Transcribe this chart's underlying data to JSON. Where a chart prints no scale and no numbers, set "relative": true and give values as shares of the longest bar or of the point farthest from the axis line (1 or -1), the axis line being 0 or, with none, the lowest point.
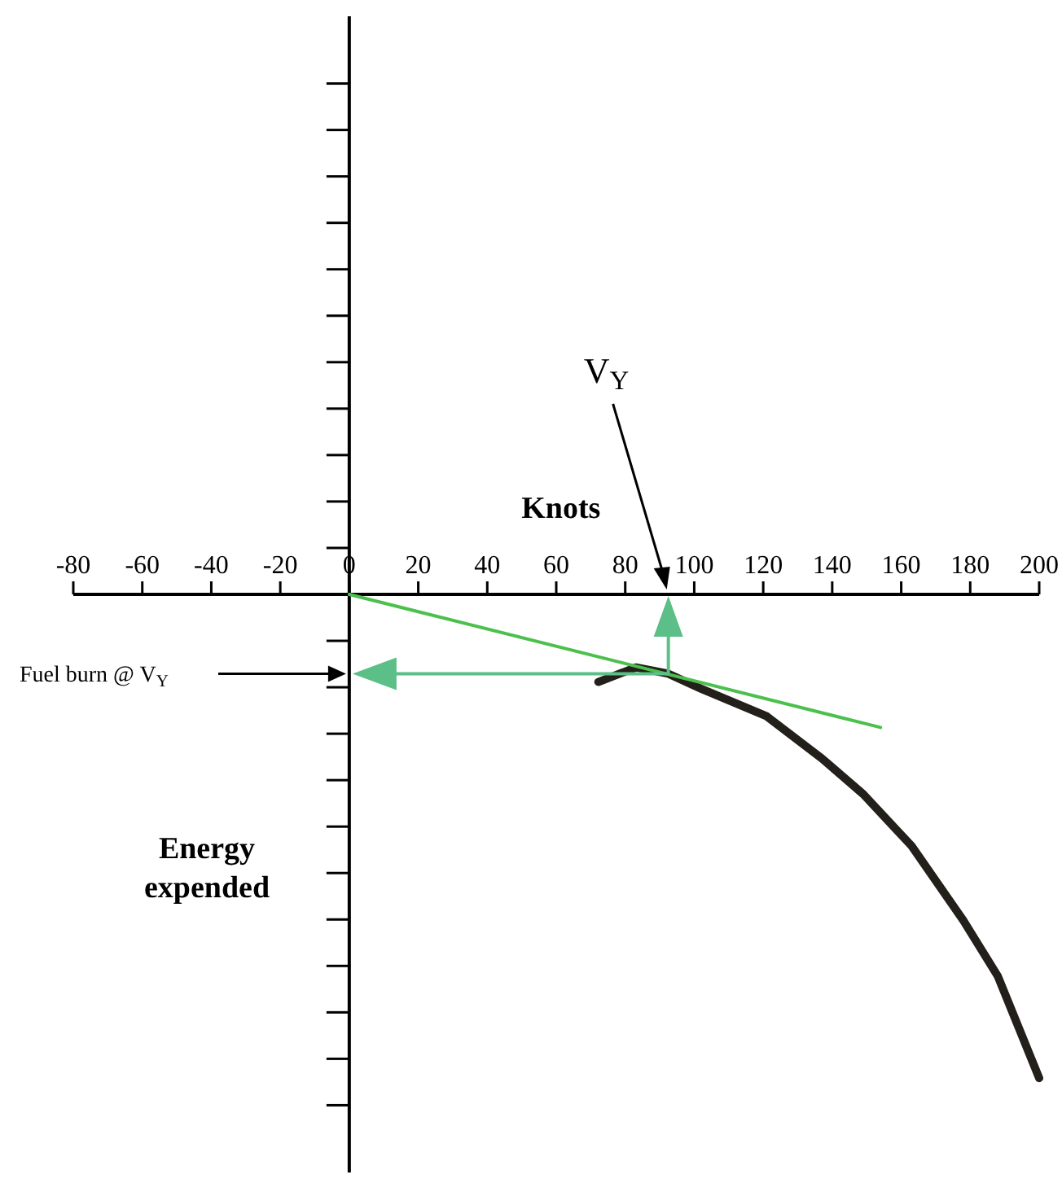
{
  "chart_data": {
    "type": "line",
    "relative": true,
    "xlabel": "Knots",
    "ylabel": "Energy expended",
    "xlim": [
      -80,
      200
    ],
    "xticks": [
      -80,
      -60,
      -40,
      -20,
      0,
      20,
      40,
      60,
      80,
      100,
      120,
      140,
      160,
      180,
      200
    ],
    "series": [
      {
        "color": "#231f1a",
        "x": [
          72.2,
          83.1,
          92.5,
          102,
          121,
          137,
          149,
          163,
          178,
          188,
          200
        ],
        "values": [
          -0.181,
          -0.151,
          -0.164,
          -0.195,
          -0.252,
          -0.339,
          -0.413,
          -0.52,
          -0.674,
          -0.789,
          -1
        ]
      },
      {
        "color": "#4cc04c",
        "x": [
          0,
          154
        ],
        "values": [
          0,
          -0.275
        ]
      }
    ],
    "annotations": [
      "V$_{Y}$",
      "Fuel burn @ V$_{Y}$"
    ]
  }
}
